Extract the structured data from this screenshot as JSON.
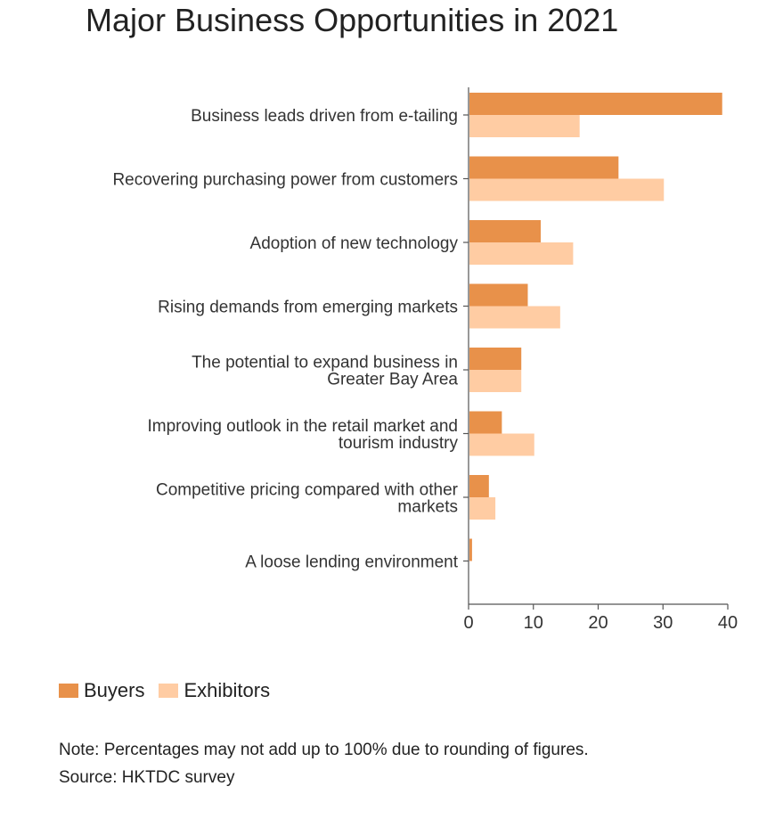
{
  "chart_data": {
    "type": "bar",
    "orientation": "horizontal",
    "title": "Major Business Opportunities in 2021",
    "categories": [
      [
        "Business leads driven from e-tailing"
      ],
      [
        "Recovering purchasing power from customers"
      ],
      [
        "Adoption of new technology"
      ],
      [
        "Rising demands from emerging markets"
      ],
      [
        "The potential to expand business in",
        "Greater Bay Area"
      ],
      [
        "Improving outlook in the retail market and",
        "tourism industry"
      ],
      [
        "Competitive pricing compared with other",
        "markets"
      ],
      [
        "A loose lending environment"
      ]
    ],
    "series": [
      {
        "name": "Buyers",
        "color": "#E8914A",
        "values": [
          39,
          23,
          11,
          9,
          8,
          5,
          3,
          0.4
        ]
      },
      {
        "name": "Exhibitors",
        "color": "#FFCCA3",
        "values": [
          17,
          30,
          16,
          14,
          8,
          10,
          4,
          0
        ]
      }
    ],
    "xlim": [
      0,
      40
    ],
    "xticks": [
      0,
      10,
      20,
      30,
      40
    ],
    "xlabel": "",
    "ylabel": "",
    "grid": false,
    "legend_position": "bottom-left"
  },
  "footer": {
    "note": "Note: Percentages may not add up to 100% due to rounding of figures.",
    "source": "Source: HKTDC survey"
  }
}
